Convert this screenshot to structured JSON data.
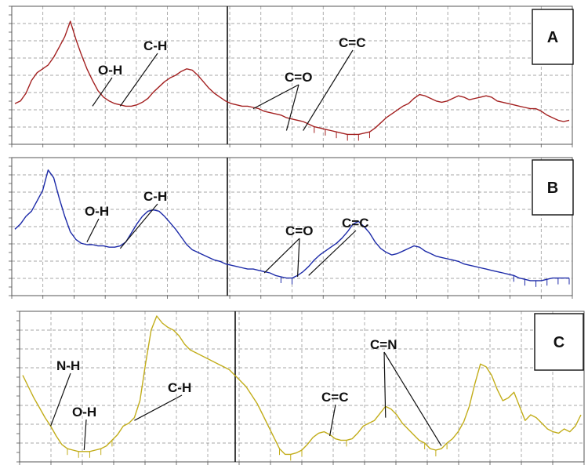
{
  "colors": {
    "panel_A": "#a32020",
    "panel_B": "#1c2aa8",
    "panel_C": "#c2ad1a",
    "grid": "#8a8a8a",
    "frame": "#555555",
    "divider": "#111111"
  },
  "chart_data": [
    {
      "type": "line",
      "panel_label": "A",
      "color": "#a32020",
      "ylim": [
        0,
        100
      ],
      "x": [
        0,
        1,
        2,
        3,
        4,
        5,
        6,
        7,
        8,
        9,
        10,
        11,
        12,
        13,
        14,
        15,
        16,
        17,
        18,
        19,
        20,
        21,
        22,
        23,
        24,
        25,
        26,
        27,
        28,
        29,
        30,
        31,
        32,
        33,
        34,
        35,
        36,
        37,
        38,
        39,
        40,
        41,
        42,
        43,
        44,
        45,
        46,
        47,
        48,
        49,
        50,
        51,
        52,
        53,
        54,
        55,
        56,
        57,
        58,
        59,
        60,
        61,
        62,
        63,
        64,
        65,
        66,
        67,
        68,
        69,
        70,
        71,
        72,
        73,
        74,
        75,
        76,
        77,
        78,
        79,
        80,
        81,
        82,
        83,
        84,
        85,
        86,
        87,
        88,
        89,
        90,
        91,
        92,
        93,
        94,
        95,
        96,
        97,
        98,
        99,
        100
      ],
      "y": [
        28,
        30,
        36,
        46,
        52,
        55,
        58,
        64,
        72,
        80,
        92,
        78,
        66,
        55,
        46,
        38,
        33,
        30,
        28,
        27,
        26,
        26,
        27,
        29,
        32,
        37,
        41,
        45,
        48,
        50,
        53,
        55,
        54,
        50,
        45,
        40,
        36,
        33,
        30,
        28,
        27,
        26,
        26,
        25,
        24,
        22,
        21,
        20,
        19,
        17,
        16,
        15,
        14,
        12,
        10,
        9,
        8,
        7,
        6,
        5,
        4,
        4,
        4,
        5,
        6,
        9,
        13,
        17,
        20,
        23,
        26,
        28,
        32,
        35,
        34,
        32,
        30,
        29,
        30,
        32,
        34,
        33,
        31,
        32,
        33,
        34,
        33,
        30,
        29,
        28,
        27,
        26,
        25,
        24,
        24,
        22,
        19,
        17,
        15,
        14,
        15
      ],
      "annotations": [
        {
          "label": "O-H",
          "anchor_x": 14,
          "anchor_y": 26
        },
        {
          "label": "C-H",
          "anchor_x": 19,
          "anchor_y": 26
        },
        {
          "label": "C=O",
          "anchor_x": 43,
          "anchor_y": 24
        },
        {
          "label": "C=O",
          "anchor_x": 49,
          "anchor_y": 7
        },
        {
          "label": "C=C",
          "anchor_x": 52,
          "anchor_y": 7
        }
      ]
    },
    {
      "type": "line",
      "panel_label": "B",
      "color": "#1c2aa8",
      "ylim": [
        0,
        100
      ],
      "x": [
        0,
        1,
        2,
        3,
        4,
        5,
        6,
        7,
        8,
        9,
        10,
        11,
        12,
        13,
        14,
        15,
        16,
        17,
        18,
        19,
        20,
        21,
        22,
        23,
        24,
        25,
        26,
        27,
        28,
        29,
        30,
        31,
        32,
        33,
        34,
        35,
        36,
        37,
        38,
        39,
        40,
        41,
        42,
        43,
        44,
        45,
        46,
        47,
        48,
        49,
        50,
        51,
        52,
        53,
        54,
        55,
        56,
        57,
        58,
        59,
        60,
        61,
        62,
        63,
        64,
        65,
        66,
        67,
        68,
        69,
        70,
        71,
        72,
        73,
        74,
        75,
        76,
        77,
        78,
        79,
        80,
        81,
        82,
        83,
        84,
        85,
        86,
        87,
        88,
        89,
        90,
        91,
        92,
        93,
        94,
        95,
        96,
        97,
        98,
        99,
        100
      ],
      "y": [
        48,
        52,
        58,
        62,
        70,
        78,
        94,
        88,
        72,
        58,
        46,
        40,
        37,
        36,
        36,
        35,
        35,
        34,
        34,
        35,
        38,
        45,
        52,
        58,
        62,
        63,
        62,
        58,
        53,
        48,
        42,
        36,
        32,
        30,
        28,
        26,
        24,
        23,
        21,
        20,
        19,
        18,
        17,
        17,
        16,
        15,
        14,
        12,
        11,
        10,
        10,
        12,
        15,
        19,
        24,
        28,
        31,
        34,
        37,
        41,
        46,
        52,
        54,
        50,
        45,
        38,
        33,
        30,
        28,
        29,
        31,
        33,
        35,
        34,
        31,
        29,
        27,
        26,
        25,
        24,
        23,
        21,
        20,
        19,
        18,
        17,
        16,
        15,
        14,
        13,
        12,
        10,
        9,
        8,
        8,
        8,
        9,
        10,
        10,
        10,
        10
      ],
      "annotations": [
        {
          "label": "O-H",
          "anchor_x": 13,
          "anchor_y": 38
        },
        {
          "label": "C-H",
          "anchor_x": 19,
          "anchor_y": 33
        },
        {
          "label": "C=O",
          "anchor_x": 45,
          "anchor_y": 14
        },
        {
          "label": "C=O",
          "anchor_x": 51,
          "anchor_y": 11
        },
        {
          "label": "C=C",
          "anchor_x": 53,
          "anchor_y": 12
        }
      ]
    },
    {
      "type": "line",
      "panel_label": "C",
      "color": "#c2ad1a",
      "ylim": [
        0,
        100
      ],
      "x": [
        0,
        1,
        2,
        3,
        4,
        5,
        6,
        7,
        8,
        9,
        10,
        11,
        12,
        13,
        14,
        15,
        16,
        17,
        18,
        19,
        20,
        21,
        22,
        23,
        24,
        25,
        26,
        27,
        28,
        29,
        30,
        31,
        32,
        33,
        34,
        35,
        36,
        37,
        38,
        39,
        40,
        41,
        42,
        43,
        44,
        45,
        46,
        47,
        48,
        49,
        50,
        51,
        52,
        53,
        54,
        55,
        56,
        57,
        58,
        59,
        60,
        61,
        62,
        63,
        64,
        65,
        66,
        67,
        68,
        69,
        70,
        71,
        72,
        73,
        74,
        75,
        76,
        77,
        78,
        79,
        80,
        81,
        82,
        83,
        84,
        85,
        86,
        87,
        88,
        89,
        90,
        91,
        92,
        93,
        94,
        95,
        96,
        97,
        98,
        99,
        100
      ],
      "y": [
        58,
        50,
        42,
        35,
        28,
        22,
        15,
        9,
        6,
        5,
        4,
        4,
        4,
        5,
        6,
        8,
        12,
        16,
        22,
        24,
        28,
        40,
        66,
        90,
        100,
        95,
        92,
        90,
        86,
        80,
        76,
        74,
        72,
        70,
        68,
        66,
        64,
        62,
        58,
        54,
        50,
        44,
        38,
        30,
        22,
        14,
        6,
        2,
        2,
        3,
        5,
        9,
        14,
        17,
        18,
        16,
        13,
        12,
        12,
        13,
        17,
        22,
        24,
        26,
        31,
        36,
        34,
        30,
        24,
        20,
        16,
        12,
        10,
        6,
        5,
        6,
        10,
        13,
        18,
        25,
        36,
        52,
        66,
        64,
        58,
        48,
        40,
        42,
        46,
        36,
        26,
        30,
        28,
        24,
        20,
        18,
        17,
        20,
        18,
        22,
        30
      ],
      "annotations": [
        {
          "label": "N-H",
          "anchor_x": 5,
          "anchor_y": 22
        },
        {
          "label": "O-H",
          "anchor_x": 11,
          "anchor_y": 5
        },
        {
          "label": "C-H",
          "anchor_x": 20,
          "anchor_y": 26
        },
        {
          "label": "C=C",
          "anchor_x": 55,
          "anchor_y": 15
        },
        {
          "label": "C=N",
          "anchor_x": 65,
          "anchor_y": 28
        },
        {
          "label": "C=N",
          "anchor_x": 75,
          "anchor_y": 8
        }
      ]
    }
  ]
}
